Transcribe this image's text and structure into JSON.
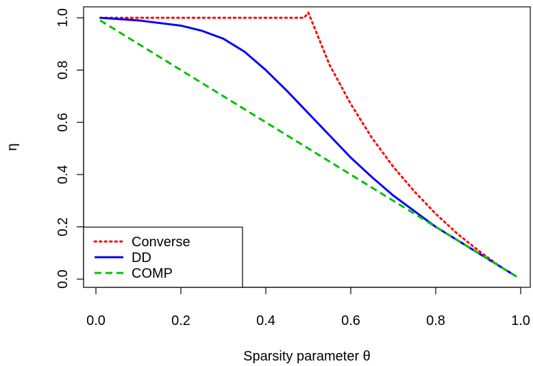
{
  "chart_data": {
    "type": "line",
    "title": "",
    "xlabel": "Sparsity parameter θ",
    "ylabel": "η",
    "xlim": [
      0.0,
      1.0
    ],
    "ylim": [
      0.0,
      1.0
    ],
    "xticks": [
      "0.0",
      "0.2",
      "0.4",
      "0.6",
      "0.8",
      "1.0"
    ],
    "yticks": [
      "0.0",
      "0.2",
      "0.4",
      "0.6",
      "0.8",
      "1.0"
    ],
    "grid": false,
    "legend_position": "bottom-left",
    "series": [
      {
        "name": "Converse",
        "color": "#ff0000",
        "style": "dotted",
        "x": [
          0.01,
          0.1,
          0.2,
          0.3,
          0.4,
          0.49,
          0.5,
          0.55,
          0.6,
          0.65,
          0.7,
          0.75,
          0.8,
          0.85,
          0.9,
          0.95,
          0.99
        ],
        "y": [
          1.0,
          1.0,
          1.0,
          1.0,
          1.0,
          1.0,
          1.02,
          0.82,
          0.67,
          0.54,
          0.43,
          0.335,
          0.25,
          0.175,
          0.11,
          0.05,
          0.01
        ]
      },
      {
        "name": "DD",
        "color": "#0000ff",
        "style": "solid",
        "x": [
          0.01,
          0.1,
          0.2,
          0.25,
          0.3,
          0.35,
          0.4,
          0.45,
          0.5,
          0.55,
          0.6,
          0.65,
          0.7,
          0.75,
          0.8,
          0.85,
          0.9,
          0.95,
          0.99
        ],
        "y": [
          1.0,
          0.99,
          0.97,
          0.95,
          0.92,
          0.87,
          0.8,
          0.72,
          0.635,
          0.55,
          0.465,
          0.39,
          0.32,
          0.26,
          0.2,
          0.15,
          0.1,
          0.05,
          0.01
        ]
      },
      {
        "name": "COMP",
        "color": "#00c000",
        "style": "dashed",
        "x": [
          0.01,
          0.99
        ],
        "y": [
          0.99,
          0.01
        ]
      }
    ]
  }
}
